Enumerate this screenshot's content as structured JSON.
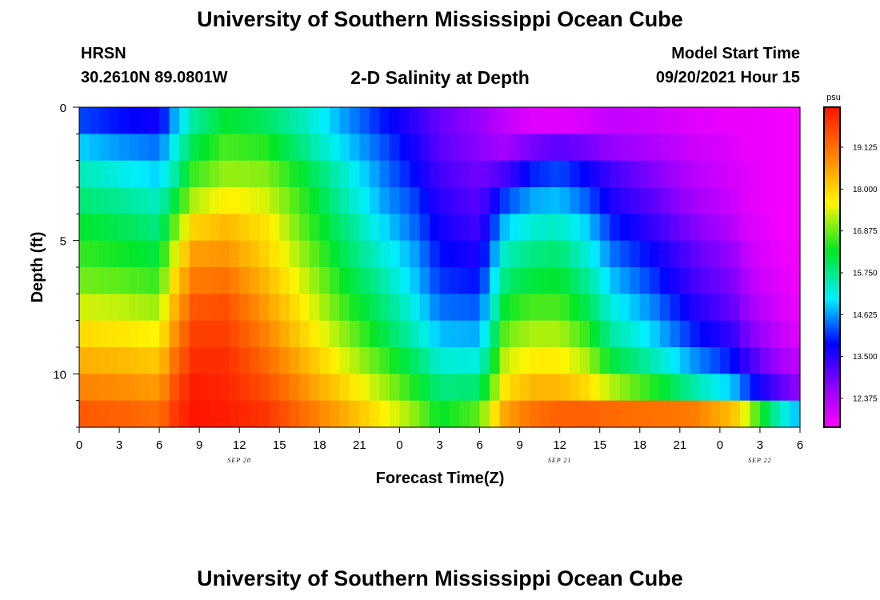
{
  "header": {
    "title": "University of Southern Mississippi Ocean Cube",
    "station": "HRSN",
    "coords": "30.2610N  89.0801W",
    "subtitle": "2-D Salinity at Depth",
    "model_start_label": "Model Start Time",
    "model_start_value": "09/20/2021 Hour 15"
  },
  "footer": {
    "title": "University of Southern Mississippi Ocean Cube"
  },
  "chart_data": {
    "type": "heatmap",
    "title": "2-D Salinity at Depth",
    "xlabel": "Forecast Time(Z)",
    "ylabel": "Depth (ft)",
    "x_tick_labels": [
      "0",
      "3",
      "6",
      "9",
      "12",
      "15",
      "18",
      "21",
      "0",
      "3",
      "6",
      "9",
      "12",
      "15",
      "18",
      "21",
      "0",
      "3",
      "6"
    ],
    "x_date_labels": [
      {
        "label": "SEP 20",
        "tick": 4
      },
      {
        "label": "SEP 21",
        "tick": 12
      },
      {
        "label": "SEP 22",
        "tick": 17
      }
    ],
    "x_range_hours": [
      0,
      54
    ],
    "y_ticks": [
      0,
      5,
      10
    ],
    "ylim": [
      0,
      12
    ],
    "colorbar": {
      "unit": "psu",
      "tick_labels": [
        "19.125",
        "18.000",
        "16.875",
        "15.750",
        "14.625",
        "13.500",
        "12.375"
      ],
      "range": [
        11.6,
        20.2
      ]
    },
    "depth_layers_ft": [
      0.5,
      1.5,
      2.5,
      3.5,
      4.5,
      5.5,
      6.5,
      7.5,
      8.5,
      9.5,
      10.5,
      11.5
    ],
    "key_hours": [
      0,
      3,
      6,
      7,
      8.5,
      11,
      14,
      17,
      20,
      23,
      25,
      27,
      30,
      32,
      34,
      36,
      38,
      40,
      43,
      46,
      49,
      50,
      51,
      52.5,
      54
    ],
    "salinity_psu": [
      [
        14.2,
        13.9,
        13.7,
        14.6,
        15.6,
        16.3,
        16.0,
        15.4,
        14.6,
        13.9,
        13.5,
        13.0,
        12.6,
        12.2,
        11.9,
        11.9,
        12.0,
        12.2,
        12.1,
        11.9,
        11.8,
        11.8,
        11.8,
        11.7,
        11.7
      ],
      [
        14.9,
        14.6,
        14.4,
        15.1,
        16.1,
        16.7,
        16.5,
        15.7,
        14.9,
        14.2,
        13.7,
        13.1,
        12.7,
        12.5,
        12.9,
        13.1,
        12.9,
        12.6,
        12.4,
        12.1,
        11.9,
        11.8,
        11.8,
        11.7,
        11.7
      ],
      [
        15.5,
        15.2,
        14.9,
        15.5,
        16.6,
        17.1,
        17.0,
        16.2,
        15.3,
        14.4,
        13.9,
        13.3,
        12.9,
        13.3,
        14.0,
        14.2,
        13.8,
        13.3,
        12.8,
        12.3,
        12.0,
        11.9,
        11.8,
        11.7,
        11.7
      ],
      [
        15.9,
        15.7,
        15.4,
        16.1,
        17.2,
        17.7,
        17.4,
        16.5,
        15.5,
        14.6,
        14.2,
        13.5,
        13.1,
        14.2,
        14.7,
        14.8,
        14.3,
        13.6,
        13.1,
        12.5,
        12.1,
        11.9,
        11.8,
        11.7,
        11.7
      ],
      [
        16.3,
        16.1,
        15.8,
        16.7,
        18.0,
        18.3,
        17.8,
        16.7,
        15.8,
        14.9,
        14.4,
        13.7,
        13.3,
        14.9,
        15.3,
        15.4,
        14.9,
        14.0,
        13.4,
        12.8,
        12.3,
        12.0,
        11.9,
        11.7,
        11.7
      ],
      [
        16.6,
        16.4,
        16.2,
        17.3,
        18.6,
        18.7,
        18.0,
        17.0,
        16.0,
        15.2,
        14.7,
        13.9,
        13.6,
        15.5,
        15.8,
        15.9,
        15.3,
        14.4,
        13.8,
        13.1,
        12.6,
        12.2,
        12.0,
        11.8,
        11.7
      ],
      [
        16.9,
        16.8,
        16.6,
        17.8,
        19.0,
        19.1,
        18.3,
        17.3,
        16.3,
        15.5,
        14.9,
        14.1,
        13.9,
        15.9,
        16.2,
        16.3,
        15.7,
        14.8,
        14.1,
        13.3,
        12.8,
        12.4,
        12.1,
        11.9,
        11.7
      ],
      [
        17.4,
        17.3,
        17.1,
        18.2,
        19.4,
        19.5,
        18.6,
        17.6,
        16.6,
        15.8,
        15.2,
        14.4,
        14.3,
        16.4,
        16.7,
        16.7,
        16.1,
        15.2,
        14.5,
        13.6,
        13.0,
        12.6,
        12.3,
        12.0,
        11.8
      ],
      [
        17.9,
        17.8,
        17.6,
        18.6,
        19.7,
        19.7,
        18.9,
        17.9,
        17.0,
        16.1,
        15.5,
        14.8,
        14.7,
        16.9,
        17.2,
        17.2,
        16.6,
        15.6,
        14.9,
        14.0,
        13.4,
        12.9,
        12.6,
        12.2,
        11.9
      ],
      [
        18.4,
        18.3,
        18.1,
        19.0,
        19.9,
        19.9,
        19.2,
        18.3,
        17.4,
        16.6,
        16.0,
        15.3,
        15.2,
        17.4,
        17.7,
        17.7,
        17.2,
        16.2,
        15.5,
        14.6,
        13.9,
        13.4,
        13.0,
        12.5,
        12.2
      ],
      [
        18.9,
        18.8,
        18.6,
        19.4,
        20.1,
        20.0,
        19.5,
        18.7,
        17.9,
        17.1,
        16.5,
        15.8,
        15.9,
        17.9,
        18.3,
        18.3,
        17.9,
        17.2,
        16.5,
        15.6,
        14.8,
        14.2,
        13.7,
        13.1,
        12.6
      ],
      [
        19.4,
        19.3,
        19.1,
        19.7,
        20.2,
        20.1,
        19.8,
        19.1,
        18.4,
        17.6,
        17.1,
        16.3,
        16.8,
        18.6,
        19.1,
        19.3,
        19.3,
        19.2,
        19.1,
        19.0,
        18.2,
        17.4,
        16.5,
        15.4,
        14.7
      ]
    ]
  }
}
